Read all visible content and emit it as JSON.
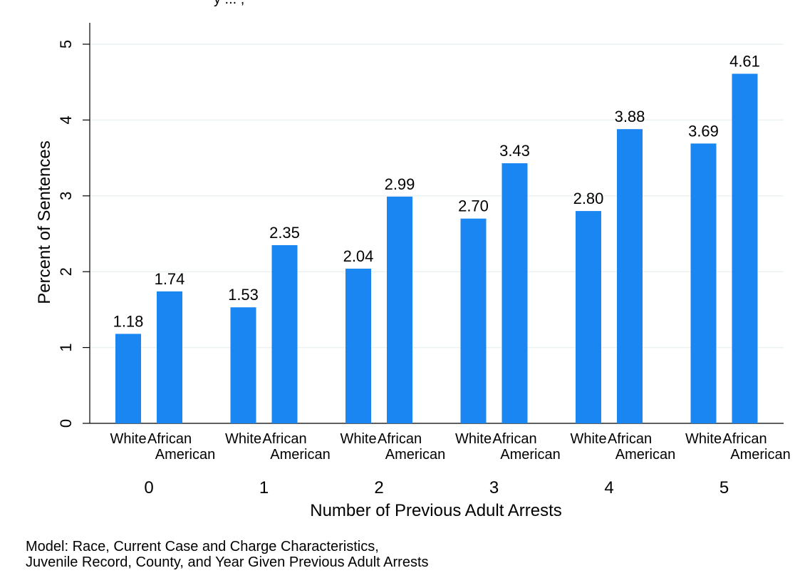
{
  "title_fragment": "y ... ,",
  "chart_data": {
    "type": "bar",
    "xlabel": "Number of Previous Adult Arrests",
    "ylabel": "Percent of Sentences",
    "ylim": [
      0,
      5
    ],
    "yticks": [
      0,
      1,
      2,
      3,
      4,
      5
    ],
    "grid": true,
    "bar_color": "#1a86f2",
    "groups": [
      "0",
      "1",
      "2",
      "3",
      "4",
      "5"
    ],
    "subcategories": [
      {
        "line1": "White",
        "line2": ""
      },
      {
        "line1": "African",
        "line2": "American"
      }
    ],
    "series": [
      {
        "values": [
          1.18,
          1.53,
          2.04,
          2.7,
          2.8,
          3.69
        ]
      },
      {
        "values": [
          1.74,
          2.35,
          2.99,
          3.43,
          3.88,
          4.61
        ]
      }
    ],
    "data_labels": [
      [
        "1.18",
        "1.53",
        "2.04",
        "2.70",
        "2.80",
        "3.69"
      ],
      [
        "1.74",
        "2.35",
        "2.99",
        "3.43",
        "3.88",
        "4.61"
      ]
    ]
  },
  "note": {
    "line1": "Model: Race, Current Case and Charge Characteristics,",
    "line2": "Juvenile Record, County, and Year Given Previous Adult Arrests"
  }
}
